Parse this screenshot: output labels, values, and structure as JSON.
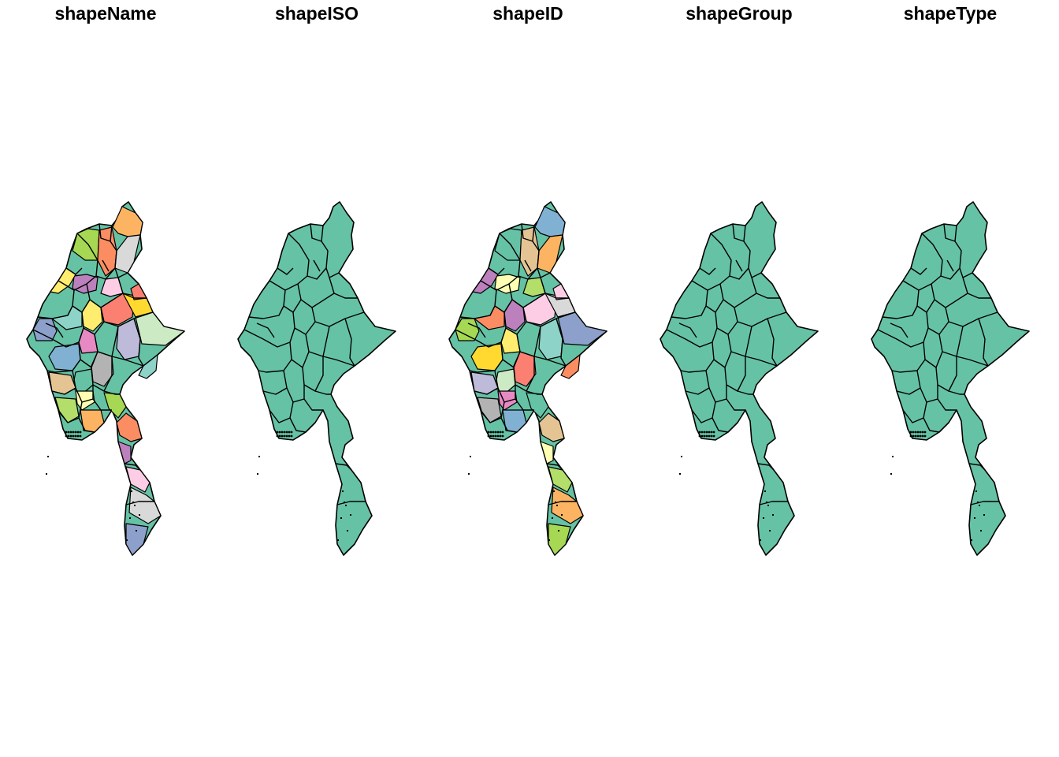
{
  "panels": [
    {
      "title": "shapeName",
      "fill_mode": "multi"
    },
    {
      "title": "shapeISO",
      "fill_mode": "single"
    },
    {
      "title": "shapeID",
      "fill_mode": "multi"
    },
    {
      "title": "shapeGroup",
      "fill_mode": "single"
    },
    {
      "title": "shapeType",
      "fill_mode": "single"
    }
  ],
  "colors": {
    "single_fill": "#66C2A5",
    "border": "#000000",
    "palette": [
      "#66C2A5",
      "#FC8D62",
      "#8DA0CB",
      "#E78AC3",
      "#A6D854",
      "#FFD92F",
      "#E5C494",
      "#B3B3B3",
      "#FFFFB3",
      "#BEBADA",
      "#FB8072",
      "#80B1D3",
      "#FDB462",
      "#B3DE69",
      "#FCCDE5",
      "#D9D9D9",
      "#BC80BD",
      "#CCEBC5",
      "#FFED6F",
      "#8DD3C7"
    ]
  }
}
